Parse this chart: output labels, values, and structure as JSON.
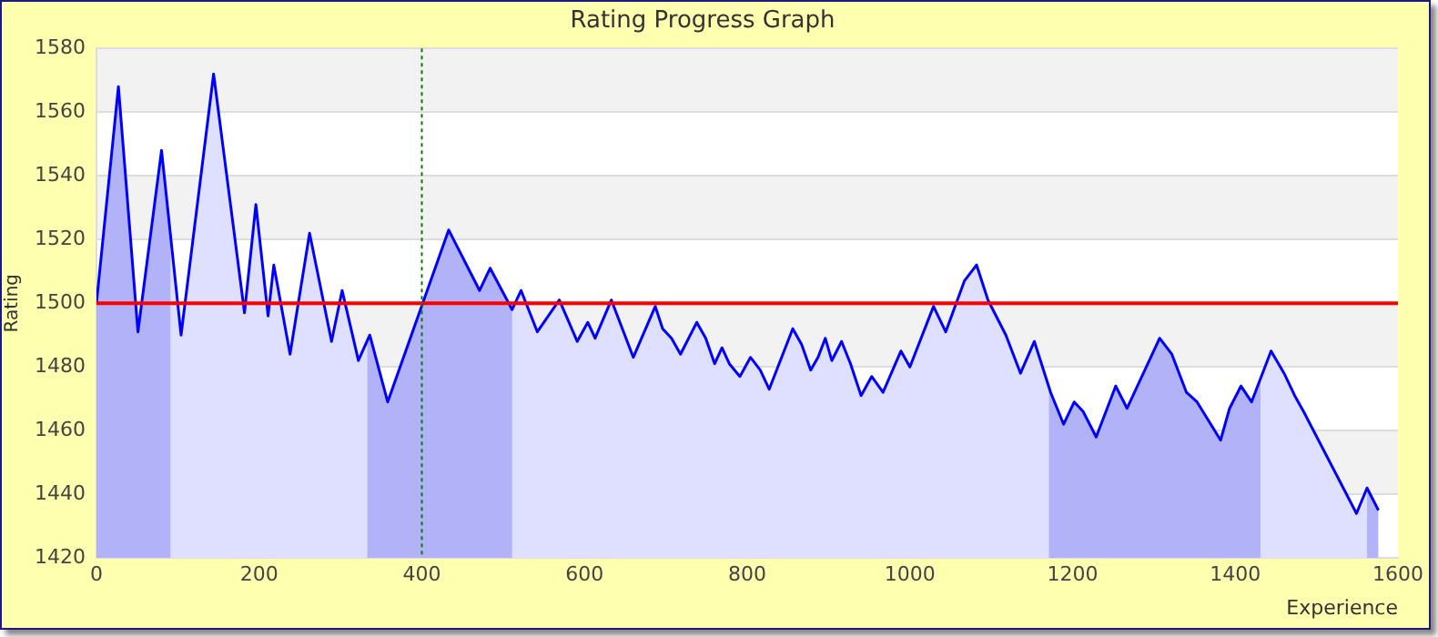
{
  "chart_data": {
    "type": "area",
    "title": "Rating Progress Graph",
    "xlabel": "Experience",
    "ylabel": "Rating",
    "x": [
      0,
      27,
      51,
      80,
      104,
      144,
      182,
      196,
      211,
      218,
      238,
      262,
      289,
      302,
      322,
      336,
      358,
      433,
      471,
      484,
      511,
      522,
      542,
      569,
      591,
      604,
      613,
      633,
      660,
      687,
      696,
      707,
      718,
      738,
      749,
      760,
      769,
      778,
      791,
      804,
      816,
      827,
      856,
      867,
      878,
      887,
      896,
      904,
      916,
      927,
      940,
      953,
      967,
      989,
      1000,
      1029,
      1044,
      1067,
      1082,
      1096,
      1118,
      1136,
      1153,
      1173,
      1189,
      1202,
      1213,
      1229,
      1253,
      1267,
      1307,
      1322,
      1340,
      1353,
      1382,
      1393,
      1407,
      1420,
      1444,
      1460,
      1473,
      1484,
      1549,
      1562,
      1576
    ],
    "series": [
      {
        "color": "#0000ff",
        "values": [
          1500,
          1568,
          1491,
          1548,
          1490,
          1572,
          1497,
          1531,
          1496,
          1512,
          1484,
          1522,
          1488,
          1504,
          1482,
          1490,
          1469,
          1523,
          1504,
          1511,
          1498,
          1504,
          1491,
          1501,
          1488,
          1494,
          1489,
          1501,
          1483,
          1499,
          1492,
          1489,
          1484,
          1494,
          1489,
          1481,
          1486,
          1481,
          1477,
          1483,
          1479,
          1473,
          1492,
          1487,
          1479,
          1483,
          1489,
          1482,
          1488,
          1481,
          1471,
          1477,
          1472,
          1485,
          1480,
          1499,
          1491,
          1507,
          1512,
          1501,
          1490,
          1478,
          1488,
          1472,
          1462,
          1469,
          1466,
          1458,
          1474,
          1467,
          1489,
          1484,
          1472,
          1469,
          1457,
          1467,
          1474,
          1469,
          1485,
          1478,
          1471,
          1466,
          1434,
          1442,
          1435
        ]
      }
    ],
    "xlim": [
      0,
      1600
    ],
    "xticks": [
      0,
      200,
      400,
      600,
      800,
      1000,
      1200,
      1400,
      1600
    ],
    "ylim": [
      1420,
      1580
    ],
    "yticks": [
      1420,
      1440,
      1460,
      1480,
      1500,
      1520,
      1540,
      1560,
      1580
    ],
    "grid": "y",
    "legend": false,
    "marker": "none",
    "line_style": "solid",
    "ref_lines": [
      {
        "axis": "y",
        "value": 1500,
        "color": "#ff0000",
        "line_style": "solid"
      },
      {
        "axis": "x",
        "value": 400,
        "color": "#008000",
        "line_style": "dotted"
      }
    ],
    "bands": [
      {
        "axis": "x",
        "from": 0,
        "to": 91,
        "color": "#ccccf8"
      },
      {
        "axis": "x",
        "from": 333,
        "to": 511,
        "color": "#ccccf8"
      },
      {
        "axis": "x",
        "from": 1171,
        "to": 1431,
        "color": "#ccccf8"
      },
      {
        "axis": "x",
        "from": 1562,
        "to": 1576,
        "color": "#ccccf8"
      }
    ]
  }
}
